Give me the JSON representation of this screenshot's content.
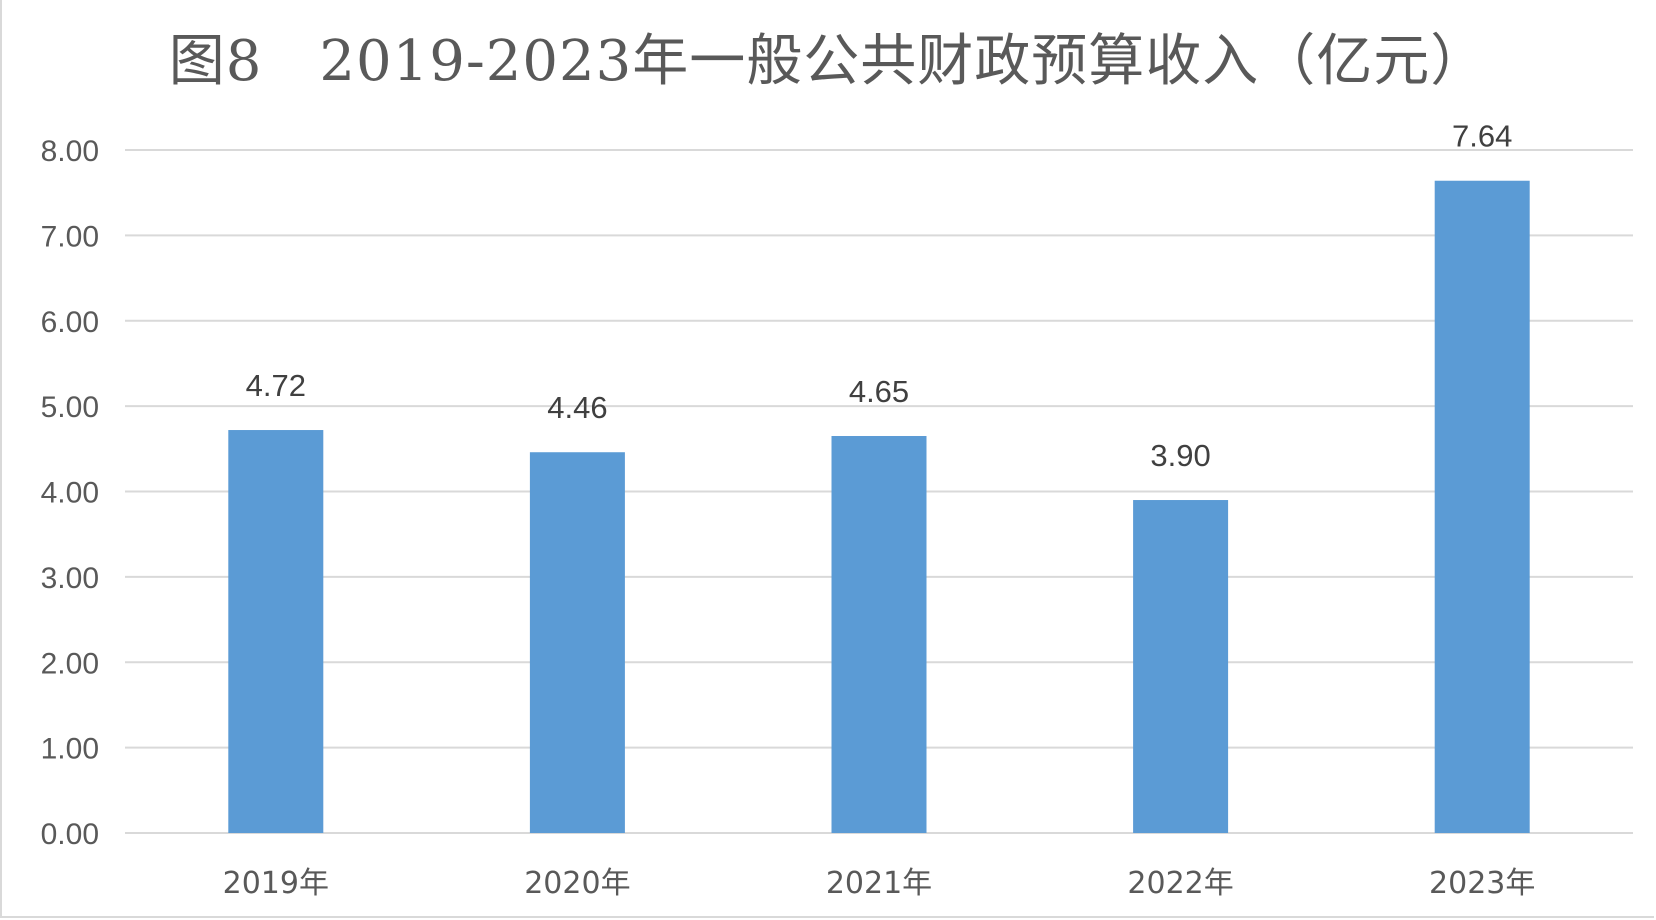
{
  "chart_data": {
    "type": "bar",
    "title": "图8　2019-2023年一般公共财政预算收入（亿元）",
    "categories": [
      "2019年",
      "2020年",
      "2021年",
      "2022年",
      "2023年"
    ],
    "values": [
      4.72,
      4.46,
      4.65,
      3.9,
      7.64
    ],
    "data_labels": [
      "4.72",
      "4.46",
      "4.65",
      "3.90",
      "7.64"
    ],
    "y_ticks": [
      "0.00",
      "1.00",
      "2.00",
      "3.00",
      "4.00",
      "5.00",
      "6.00",
      "7.00",
      "8.00"
    ],
    "ylim": [
      0,
      8
    ],
    "grid": true,
    "legend": "none",
    "xlabel": "",
    "ylabel": "",
    "bar_color": "#5b9bd5",
    "grid_color": "#d9d9d9",
    "text_color": "#595959"
  }
}
